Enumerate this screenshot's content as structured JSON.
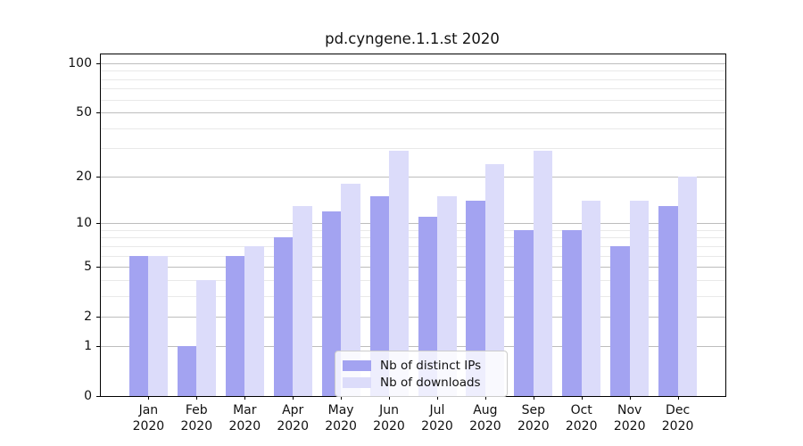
{
  "chart_data": {
    "type": "bar",
    "title": "pd.cyngene.1.1.st 2020",
    "categories": [
      "Jan 2020",
      "Feb 2020",
      "Mar 2020",
      "Apr 2020",
      "May 2020",
      "Jun 2020",
      "Jul 2020",
      "Aug 2020",
      "Sep 2020",
      "Oct 2020",
      "Nov 2020",
      "Dec 2020"
    ],
    "series": [
      {
        "name": "Nb of distinct IPs",
        "color": "#a3a3f1",
        "values": [
          6,
          1,
          6,
          8,
          12,
          15,
          11,
          14,
          9,
          9,
          7,
          13
        ]
      },
      {
        "name": "Nb of downloads",
        "color": "#dcdcfa",
        "values": [
          6,
          4,
          7,
          13,
          18,
          29,
          15,
          24,
          29,
          14,
          14,
          20
        ]
      }
    ],
    "xlabel": "",
    "ylabel": "",
    "yscale": "log1p",
    "ylim": [
      0,
      113
    ],
    "y_major_ticks": [
      0,
      1,
      2,
      5,
      10,
      20,
      50,
      100
    ],
    "y_minor_gridlines": [
      3,
      4,
      6,
      7,
      8,
      9,
      30,
      40,
      60,
      70,
      80,
      90
    ],
    "grid": true,
    "legend_position": "lower center inside"
  },
  "colors": {
    "background": "#ffffff",
    "axis_border": "#000000",
    "major_grid": "#bdbdbd",
    "minor_grid": "#e9e9e9",
    "text": "#111111",
    "legend_border": "#cccccc"
  }
}
